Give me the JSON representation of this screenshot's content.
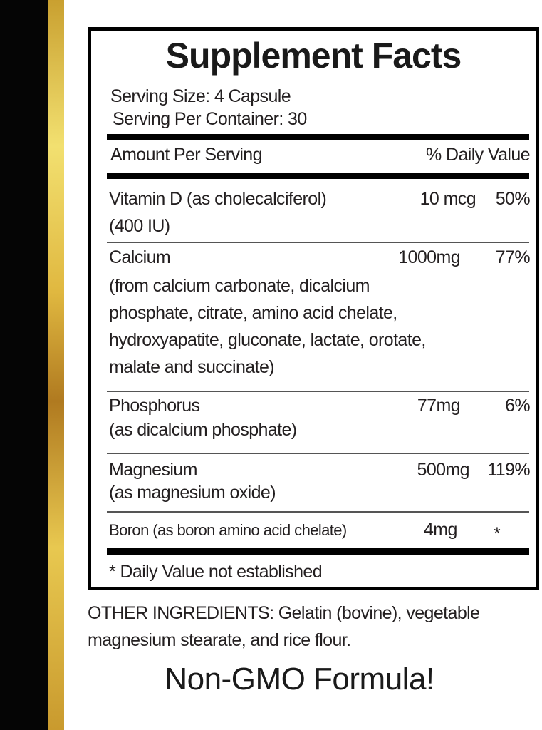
{
  "colors": {
    "stripe_black": "#050505",
    "stripe_gold": "#e0b840"
  },
  "title": "Supplement Facts",
  "serving_size": "Serving Size: 4 Capsule",
  "servings_per_container": "Serving Per Container: 30",
  "header": {
    "amount": "Amount Per Serving",
    "dv": "% Daily Value"
  },
  "rows": [
    {
      "name": "Vitamin D (as cholecalciferol)",
      "detail": [
        "(400 IU)"
      ],
      "amount": "10 mcg",
      "dv": "50%"
    },
    {
      "name": "Calcium",
      "detail": [
        "(from calcium carbonate, dicalcium",
        "phosphate, citrate, amino acid chelate,",
        "hydroxyapatite, gluconate, lactate, orotate,",
        "malate and succinate)"
      ],
      "amount": "1000mg",
      "dv": "77%"
    },
    {
      "name": "Phosphorus",
      "detail": [
        " (as dicalcium phosphate)"
      ],
      "amount": "77mg",
      "dv": "6%"
    },
    {
      "name": "Magnesium",
      "detail": [
        "(as magnesium oxide)"
      ],
      "amount": "500mg",
      "dv": "119%"
    },
    {
      "name": "Boron (as boron amino acid chelate)",
      "detail": [],
      "amount": "4mg",
      "dv": "*"
    }
  ],
  "footnote": "* Daily Value not established",
  "other_ingredients": [
    "OTHER INGREDIENTS: Gelatin (bovine), vegetable",
    "magnesium stearate, and rice flour."
  ],
  "tagline": "Non-GMO Formula!"
}
